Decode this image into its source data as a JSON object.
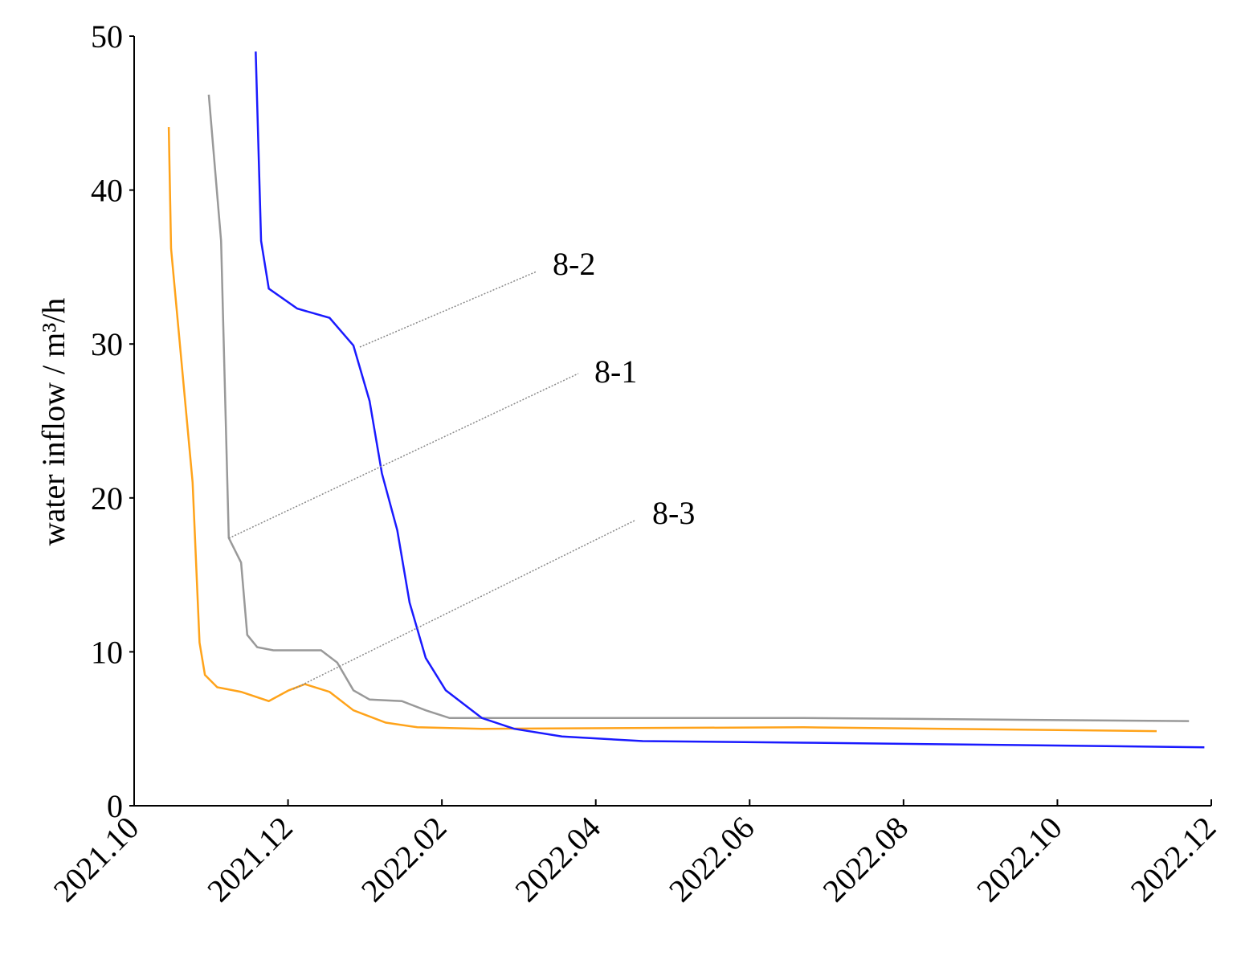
{
  "chart_data": {
    "type": "line",
    "y_label": "water inflow / m³/h",
    "xlim": [
      0,
      14
    ],
    "xticks": [
      {
        "value": 0,
        "label": "2021.10"
      },
      {
        "value": 2,
        "label": "2021.12"
      },
      {
        "value": 4,
        "label": "2022.02"
      },
      {
        "value": 6,
        "label": "2022.04"
      },
      {
        "value": 8,
        "label": "2022.06"
      },
      {
        "value": 10,
        "label": "2022.08"
      },
      {
        "value": 12,
        "label": "2022.10"
      },
      {
        "value": 14,
        "label": "2022.12"
      }
    ],
    "ylim": [
      0,
      50
    ],
    "yticks": [
      0,
      10,
      20,
      30,
      40,
      50
    ],
    "series": [
      {
        "name": "8-3",
        "color": "#ffa31a",
        "x": [
          0.45,
          0.48,
          0.76,
          0.85,
          0.92,
          1.08,
          1.39,
          1.75,
          2.01,
          2.22,
          2.54,
          2.85,
          3.27,
          3.68,
          4.52,
          8.7,
          13.29
        ],
        "values": [
          44.1,
          36.2,
          21.0,
          10.6,
          8.5,
          7.7,
          7.4,
          6.8,
          7.5,
          7.9,
          7.4,
          6.2,
          5.4,
          5.1,
          5.0,
          5.1,
          4.85
        ]
      },
      {
        "name": "8-1",
        "color": "#999999",
        "x": [
          0.97,
          1.13,
          1.23,
          1.28,
          1.39,
          1.47,
          1.6,
          1.81,
          2.43,
          2.64,
          2.85,
          3.06,
          3.48,
          3.79,
          4.1,
          4.52,
          8.7,
          13.71
        ],
        "values": [
          46.2,
          36.7,
          17.4,
          16.9,
          15.8,
          11.1,
          10.3,
          10.1,
          10.1,
          9.3,
          7.5,
          6.9,
          6.8,
          6.2,
          5.7,
          5.7,
          5.7,
          5.5
        ]
      },
      {
        "name": "8-2",
        "color": "#1a1aff",
        "x": [
          1.58,
          1.65,
          1.75,
          2.12,
          2.54,
          2.85,
          3.06,
          3.22,
          3.42,
          3.58,
          3.79,
          4.05,
          4.52,
          4.94,
          5.56,
          6.61,
          8.7,
          13.91
        ],
        "values": [
          49.0,
          36.7,
          33.6,
          32.3,
          31.7,
          29.9,
          26.3,
          21.6,
          17.9,
          13.2,
          9.6,
          7.5,
          5.7,
          5.0,
          4.5,
          4.2,
          4.1,
          3.8
        ]
      }
    ]
  }
}
